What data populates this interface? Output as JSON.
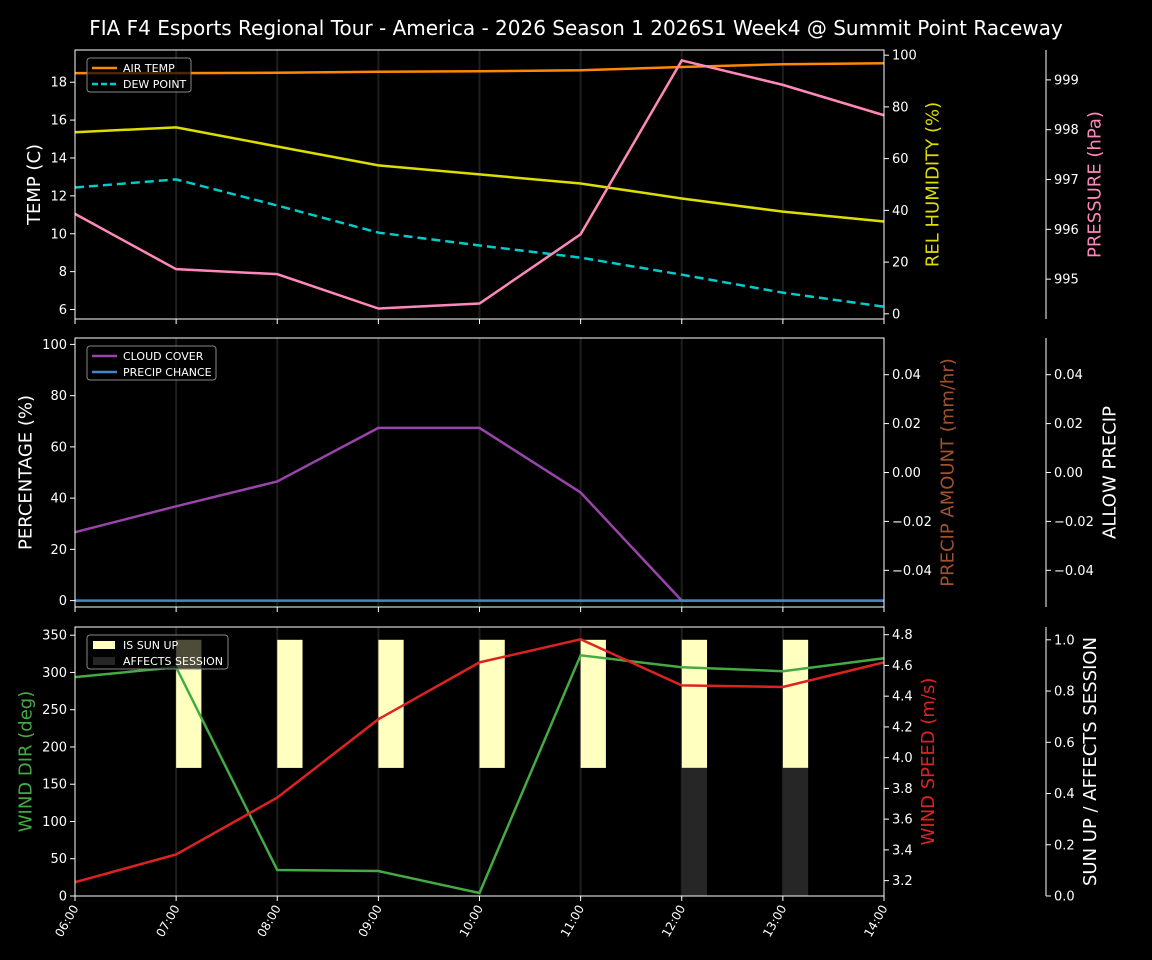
{
  "title": "FIA F4 Esports Regional Tour - America - 2026 Season 1 2026S1 Week4 @ Summit Point Raceway",
  "chart_data": [
    {
      "type": "line",
      "x": [
        "06:00",
        "07:00",
        "08:00",
        "09:00",
        "10:00",
        "11:00",
        "12:00",
        "13:00",
        "14:00"
      ],
      "grid": "vertical",
      "axes": {
        "left": {
          "label": "TEMP (C)",
          "color": "#ffffff",
          "ylim": [
            5.5,
            19.7
          ],
          "ticks": [
            6,
            8,
            10,
            12,
            14,
            16,
            18
          ]
        },
        "right1": {
          "label": "REL HUMIDITY (%)",
          "color": "#dddd00",
          "ylim": [
            -2,
            102
          ],
          "ticks": [
            0,
            20,
            40,
            60,
            80,
            100
          ]
        },
        "right2": {
          "label": "PRESSURE (hPa)",
          "color": "#ff88bb",
          "ylim": [
            994.2,
            999.6
          ],
          "ticks": [
            995,
            996,
            997,
            998,
            999
          ]
        }
      },
      "legend": {
        "placement": "top-left",
        "entries": [
          "AIR TEMP",
          "DEW POINT"
        ]
      },
      "series": [
        {
          "name": "AIR TEMP",
          "axis": "left",
          "color": "#ff8800",
          "style": "solid",
          "values": [
            18.48,
            18.48,
            18.5,
            18.55,
            18.58,
            18.63,
            18.8,
            18.95,
            19.0
          ]
        },
        {
          "name": "DEW POINT",
          "axis": "left",
          "color": "#00cccc",
          "style": "dashed",
          "values": [
            12.44,
            12.87,
            11.49,
            10.06,
            9.38,
            8.74,
            7.84,
            6.89,
            6.15
          ]
        },
        {
          "axis": "right1",
          "color": "#dddd00",
          "style": "solid",
          "values": [
            70.2,
            72.1,
            64.7,
            57.4,
            53.9,
            50.4,
            44.6,
            39.5,
            35.7
          ]
        },
        {
          "axis": "right2",
          "color": "#ff88bb",
          "style": "solid",
          "values": [
            996.31,
            995.2,
            995.1,
            994.41,
            994.51,
            995.9,
            999.39,
            998.9,
            998.29
          ]
        }
      ]
    },
    {
      "type": "line",
      "x": [
        "06:00",
        "07:00",
        "08:00",
        "09:00",
        "10:00",
        "11:00",
        "12:00",
        "13:00",
        "14:00"
      ],
      "grid": "vertical",
      "axes": {
        "left": {
          "label": "PERCENTAGE (%)",
          "color": "#ffffff",
          "ylim": [
            -2.5,
            102.5
          ],
          "ticks": [
            0,
            20,
            40,
            60,
            80,
            100
          ]
        },
        "right1": {
          "label": "PRECIP AMOUNT (mm/hr)",
          "color": "#a0522d",
          "ylim": [
            -0.055,
            0.055
          ],
          "ticks": [
            -0.04,
            -0.02,
            0.0,
            0.02,
            0.04
          ],
          "tick_labels": [
            "−0.04",
            "−0.02",
            "0.00",
            "0.02",
            "0.04"
          ]
        },
        "right2": {
          "label": "ALLOW PRECIP",
          "color": "#ffffff",
          "ylim": [
            -0.055,
            0.055
          ],
          "ticks": [
            -0.04,
            -0.02,
            0.0,
            0.02,
            0.04
          ],
          "tick_labels": [
            "−0.04",
            "−0.02",
            "0.00",
            "0.02",
            "0.04"
          ]
        }
      },
      "legend": {
        "placement": "top-left",
        "entries": [
          "CLOUD COVER",
          "PRECIP CHANCE"
        ]
      },
      "series": [
        {
          "name": "CLOUD COVER",
          "axis": "left",
          "color": "#9944aa",
          "style": "solid",
          "values": [
            26.7,
            36.8,
            46.5,
            67.4,
            67.4,
            42.2,
            0,
            0,
            0
          ]
        },
        {
          "name": "PRECIP CHANCE",
          "axis": "left",
          "color": "#4488cc",
          "style": "solid",
          "values": [
            0,
            0,
            0,
            0,
            0,
            0,
            0,
            0,
            0
          ]
        }
      ]
    },
    {
      "type": "line",
      "x": [
        "06:00",
        "07:00",
        "08:00",
        "09:00",
        "10:00",
        "11:00",
        "12:00",
        "13:00",
        "14:00"
      ],
      "grid": "vertical",
      "axes": {
        "left": {
          "label": "WIND DIR (deg)",
          "color": "#44aa44",
          "ylim": [
            0,
            361
          ],
          "ticks": [
            0,
            50,
            100,
            150,
            200,
            250,
            300,
            350
          ]
        },
        "right1": {
          "label": "WIND SPEED (m/s)",
          "color": "#dd2222",
          "ylim": [
            3.1,
            4.85
          ],
          "ticks": [
            3.2,
            3.4,
            3.6,
            3.8,
            4.0,
            4.2,
            4.4,
            4.6,
            4.8
          ],
          "tick_labels": [
            "3.2",
            "3.4",
            "3.6",
            "3.8",
            "4.0",
            "4.2",
            "4.4",
            "4.6",
            "4.8"
          ]
        },
        "right2": {
          "label": "SUN UP / AFFECTS SESSION",
          "color": "#ffffff",
          "ylim": [
            0,
            1.05
          ],
          "ticks": [
            0,
            0.2,
            0.4,
            0.6,
            0.8,
            1.0
          ],
          "tick_labels": [
            "0.0",
            "0.2",
            "0.4",
            "0.6",
            "0.8",
            "1.0"
          ]
        }
      },
      "legend": {
        "placement": "top-left",
        "entries": [
          "IS SUN UP",
          "AFFECTS SESSION"
        ]
      },
      "bars": [
        {
          "name": "IS SUN UP",
          "color": "#ffffc0",
          "range": [
            0.5,
            1.0
          ],
          "x": [
            "07:00",
            "08:00",
            "09:00",
            "10:00",
            "11:00",
            "12:00",
            "13:00"
          ]
        },
        {
          "name": "AFFECTS SESSION",
          "color": "#262626",
          "range": [
            0,
            0.5
          ],
          "x": [
            "12:00",
            "13:00"
          ]
        }
      ],
      "series": [
        {
          "axis": "left",
          "color": "#44aa44",
          "style": "solid",
          "values": [
            293.7,
            307,
            34.9,
            33.5,
            4,
            323,
            307,
            301.7,
            319
          ]
        },
        {
          "axis": "right1",
          "color": "#dd2222",
          "style": "solid",
          "values": [
            3.19,
            3.37,
            3.74,
            4.25,
            4.62,
            4.77,
            4.47,
            4.46,
            4.62
          ]
        }
      ]
    }
  ]
}
